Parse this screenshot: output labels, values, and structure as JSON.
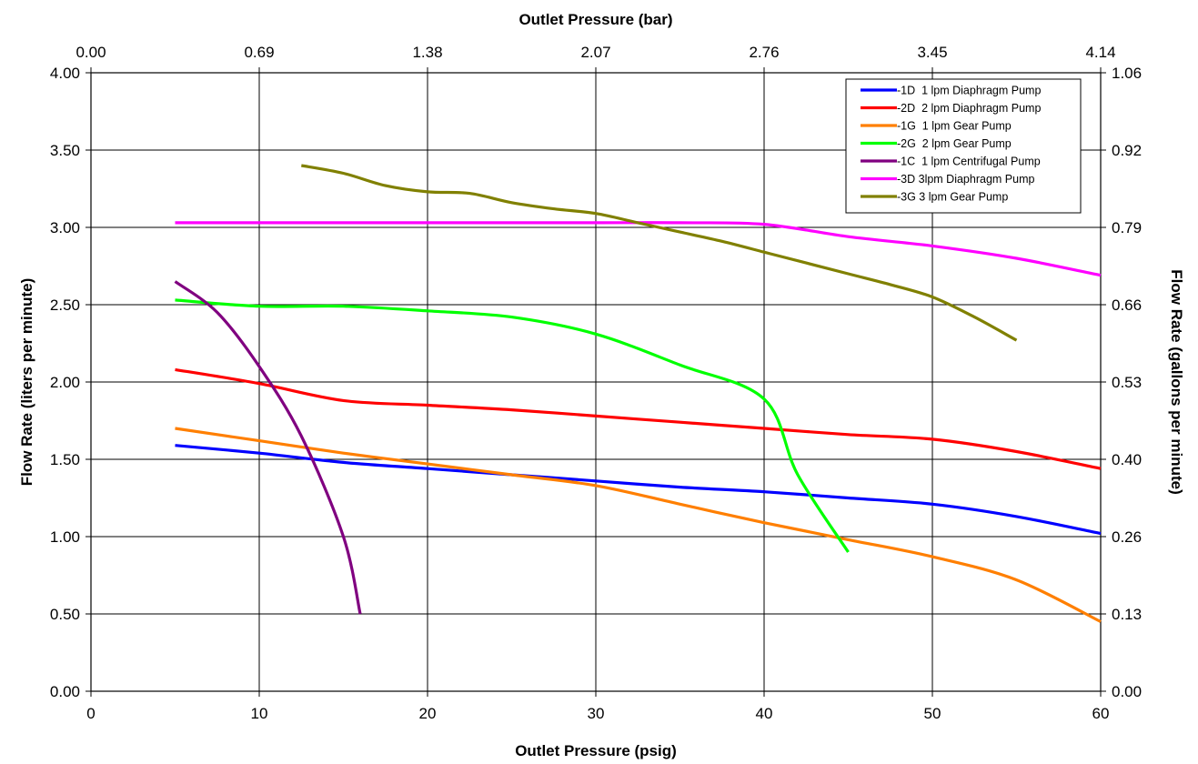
{
  "chart_data": {
    "type": "line",
    "title": "",
    "xlabel_bottom": "Outlet Pressure (psig)",
    "xlabel_top": "Outlet Pressure (bar)",
    "ylabel_left": "Flow Rate (liters per minute)",
    "ylabel_right": "Flow Rate (gallons per minute)",
    "xlim": [
      0,
      60
    ],
    "ylim": [
      0,
      4
    ],
    "x_ticks": [
      "0",
      "10",
      "20",
      "30",
      "40",
      "50",
      "60"
    ],
    "x_top_ticks": [
      "0.00",
      "0.69",
      "1.38",
      "2.07",
      "2.76",
      "3.45",
      "4.14"
    ],
    "y_ticks": [
      "0.00",
      "0.50",
      "1.00",
      "1.50",
      "2.00",
      "2.50",
      "3.00",
      "3.50",
      "4.00"
    ],
    "y_right_ticks": [
      "0.00",
      "0.13",
      "0.26",
      "0.40",
      "0.53",
      "0.66",
      "0.79",
      "0.92",
      "1.06"
    ],
    "grid": true,
    "legend_position": "top-right",
    "series": [
      {
        "name": "-1D  1 lpm Diaphragm Pump",
        "color": "#0000ff",
        "x": [
          5,
          10,
          15,
          20,
          25,
          30,
          35,
          40,
          45,
          50,
          55,
          60
        ],
        "y": [
          1.59,
          1.54,
          1.48,
          1.44,
          1.4,
          1.36,
          1.32,
          1.29,
          1.25,
          1.21,
          1.13,
          1.02
        ]
      },
      {
        "name": "-2D  2 lpm Diaphragm Pump",
        "color": "#ff0000",
        "x": [
          5,
          10,
          15,
          20,
          25,
          30,
          35,
          40,
          45,
          50,
          55,
          60
        ],
        "y": [
          2.08,
          1.99,
          1.88,
          1.85,
          1.82,
          1.78,
          1.74,
          1.7,
          1.66,
          1.63,
          1.55,
          1.44
        ]
      },
      {
        "name": "-1G  1 lpm Gear Pump",
        "color": "#ff7f00",
        "x": [
          5,
          10,
          15,
          20,
          25,
          30,
          35,
          40,
          45,
          50,
          55,
          60
        ],
        "y": [
          1.7,
          1.62,
          1.54,
          1.47,
          1.4,
          1.33,
          1.21,
          1.09,
          0.98,
          0.87,
          0.72,
          0.45
        ]
      },
      {
        "name": "-2G  2 lpm Gear Pump",
        "color": "#00ff00",
        "x": [
          5,
          10,
          15,
          20,
          25,
          30,
          35,
          40,
          42,
          45
        ],
        "y": [
          2.53,
          2.49,
          2.49,
          2.46,
          2.42,
          2.31,
          2.11,
          1.89,
          1.4,
          0.9
        ]
      },
      {
        "name": "-1C  1 lpm Centrifugal Pump",
        "color": "#800080",
        "x": [
          5,
          7.5,
          10,
          12.5,
          15,
          16
        ],
        "y": [
          2.65,
          2.45,
          2.1,
          1.65,
          1.0,
          0.5
        ]
      },
      {
        "name": "-3D 3lpm Diaphragm Pump",
        "color": "#ff00ff",
        "x": [
          5,
          10,
          15,
          20,
          25,
          30,
          35,
          40,
          45,
          50,
          55,
          60
        ],
        "y": [
          3.03,
          3.03,
          3.03,
          3.03,
          3.03,
          3.03,
          3.03,
          3.02,
          2.94,
          2.88,
          2.8,
          2.69
        ]
      },
      {
        "name": "-3G 3 lpm Gear Pump",
        "color": "#808000",
        "x": [
          12.5,
          15,
          17.5,
          20,
          22.5,
          25,
          27.5,
          30,
          32.5,
          35,
          37.5,
          40,
          42.5,
          45,
          47.5,
          50,
          52.5,
          55
        ],
        "y": [
          3.4,
          3.35,
          3.27,
          3.23,
          3.22,
          3.16,
          3.12,
          3.09,
          3.03,
          2.97,
          2.91,
          2.84,
          2.77,
          2.7,
          2.63,
          2.55,
          2.42,
          2.27
        ]
      }
    ]
  }
}
